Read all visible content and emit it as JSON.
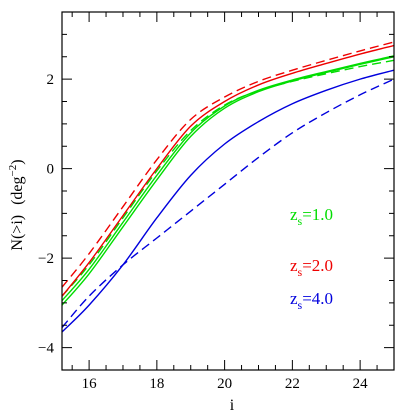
{
  "chart_data": {
    "type": "line",
    "xlabel": "i",
    "ylabel_main": "N(>i)",
    "ylabel_unit_base": "(deg",
    "ylabel_unit_exp": "−2",
    "ylabel_unit_close": ")",
    "xlim": [
      15.2,
      25.0
    ],
    "ylim": [
      -4.5,
      3.5
    ],
    "x_ticks": [
      16,
      18,
      20,
      22,
      24
    ],
    "x_tick_labels": [
      "16",
      "18",
      "20",
      "22",
      "24"
    ],
    "y_ticks": [
      -4,
      -2,
      0,
      2
    ],
    "y_tick_labels": [
      "−4",
      "−2",
      "0",
      "2"
    ],
    "legend": [
      {
        "z": "z",
        "sub": "s",
        "val": "=1.0",
        "color": "#00dd00"
      },
      {
        "z": "z",
        "sub": "s",
        "val": "=2.0",
        "color": "#ee0000"
      },
      {
        "z": "z",
        "sub": "s",
        "val": "=4.0",
        "color": "#0000dd"
      }
    ],
    "series": [
      {
        "color": "#00dd00",
        "style": "solid",
        "x": [
          15.2,
          16,
          17,
          18,
          19,
          20,
          21,
          22,
          23,
          24,
          25
        ],
        "y": [
          -2.95,
          -2.25,
          -1.2,
          -0.15,
          0.8,
          1.4,
          1.75,
          1.98,
          2.17,
          2.35,
          2.52
        ]
      },
      {
        "color": "#00dd00",
        "style": "dashed",
        "x": [
          15.2,
          16,
          17,
          18,
          19,
          20,
          21,
          22,
          23,
          24,
          25
        ],
        "y": [
          -2.85,
          -2.15,
          -1.1,
          -0.05,
          0.85,
          1.42,
          1.74,
          1.95,
          2.12,
          2.28,
          2.42
        ]
      },
      {
        "color": "#00dd00",
        "style": "solid",
        "x": [
          15.2,
          16,
          17,
          18,
          19,
          20,
          21,
          22,
          23,
          24,
          25
        ],
        "y": [
          -3.05,
          -2.35,
          -1.3,
          -0.25,
          0.72,
          1.35,
          1.72,
          1.96,
          2.15,
          2.33,
          2.5
        ]
      },
      {
        "color": "#ee0000",
        "style": "solid",
        "x": [
          15.2,
          16,
          17,
          18,
          19,
          20,
          21,
          22,
          23,
          24,
          25
        ],
        "y": [
          -2.85,
          -2.1,
          -1.05,
          0.0,
          0.95,
          1.5,
          1.87,
          2.13,
          2.35,
          2.56,
          2.75
        ]
      },
      {
        "color": "#ee0000",
        "style": "dashed",
        "x": [
          15.2,
          16,
          17,
          18,
          19,
          20,
          21,
          22,
          23,
          24,
          25
        ],
        "y": [
          -2.65,
          -1.9,
          -0.85,
          0.2,
          1.1,
          1.6,
          1.95,
          2.2,
          2.42,
          2.63,
          2.83
        ]
      },
      {
        "color": "#0000dd",
        "style": "solid",
        "x": [
          15.2,
          16,
          17,
          18,
          19,
          20,
          21,
          22,
          23,
          24,
          25
        ],
        "y": [
          -3.65,
          -3.05,
          -2.15,
          -1.1,
          -0.15,
          0.55,
          1.05,
          1.45,
          1.75,
          2.0,
          2.2
        ]
      },
      {
        "color": "#0000dd",
        "style": "dashed",
        "x": [
          15.2,
          16,
          17,
          18,
          19,
          20,
          21,
          22,
          23,
          24,
          25
        ],
        "y": [
          -3.55,
          -2.85,
          -2.15,
          -1.55,
          -0.95,
          -0.35,
          0.25,
          0.8,
          1.25,
          1.65,
          2.0
        ]
      }
    ]
  }
}
